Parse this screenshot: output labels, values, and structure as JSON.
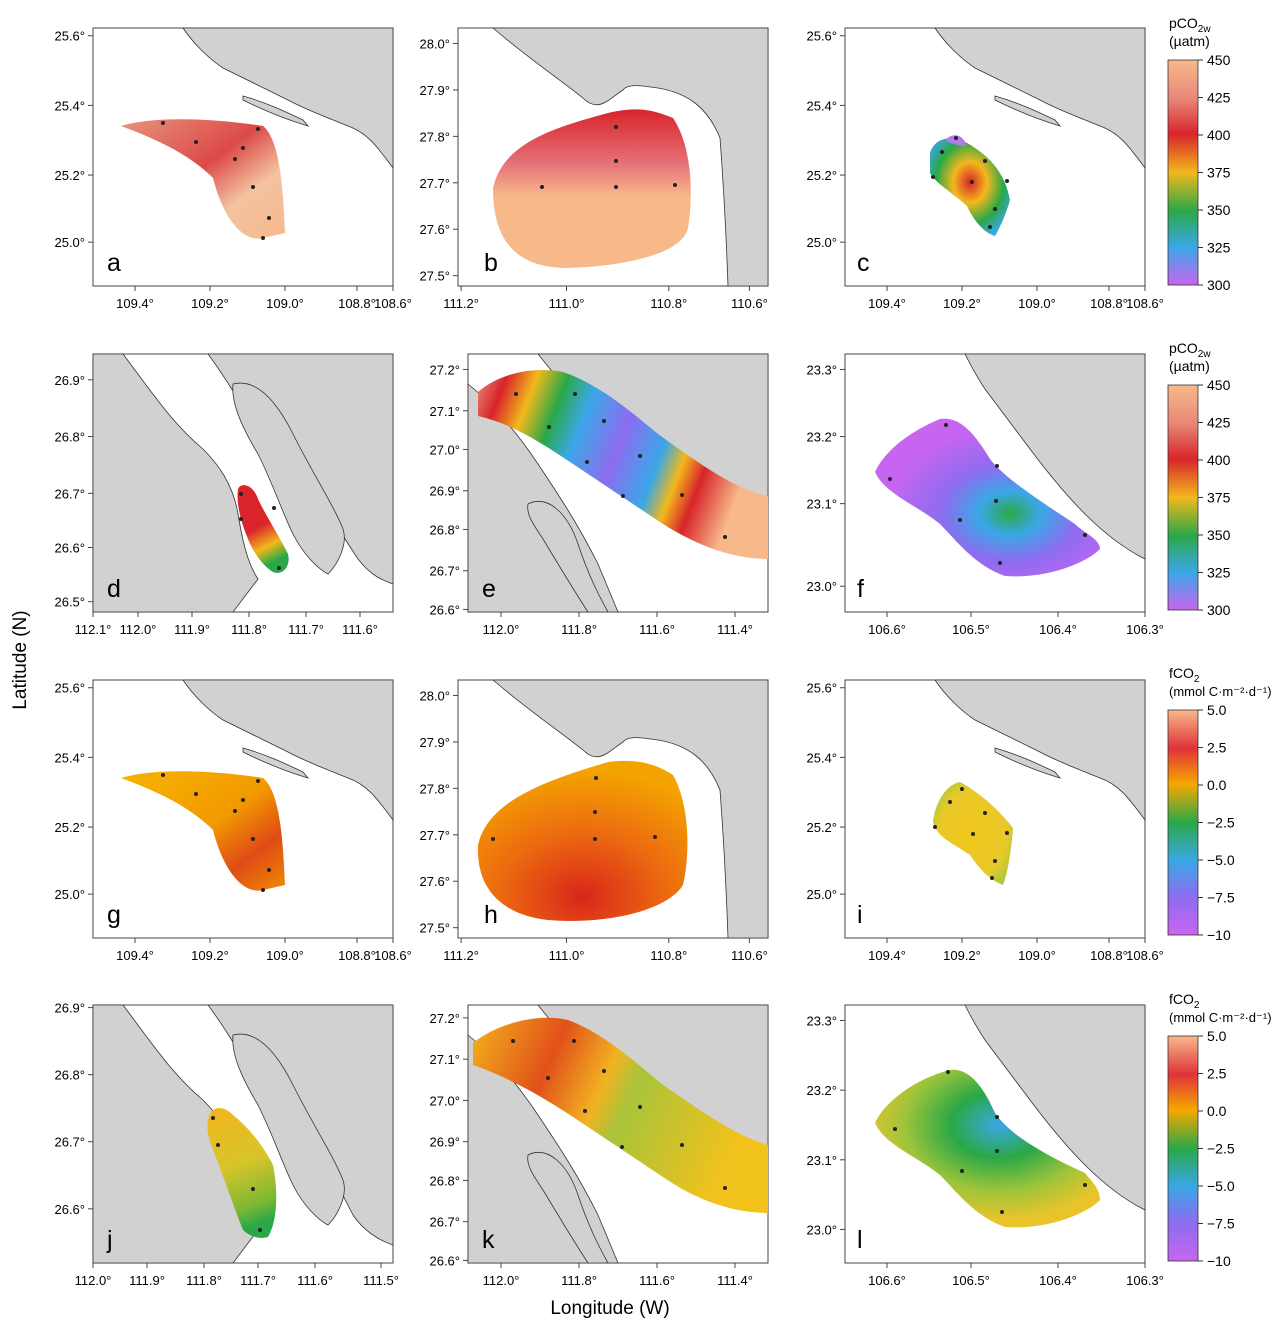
{
  "axes": {
    "xlabel": "Longitude (W)",
    "ylabel": "Latitude (N)"
  },
  "colorbars": [
    {
      "title": "pCO2w",
      "title_main": "pCO",
      "title_sub": "2w",
      "unit": "(µatm)",
      "ticks": [
        "450",
        "425",
        "400",
        "375",
        "350",
        "325",
        "300"
      ]
    },
    {
      "title": "pCO2w",
      "title_main": "pCO",
      "title_sub": "2w",
      "unit": "(µatm)",
      "ticks": [
        "450",
        "425",
        "400",
        "375",
        "350",
        "325",
        "300"
      ]
    },
    {
      "title": "fCO2",
      "title_main": "fCO",
      "title_sub": "2",
      "unit": "(mmol C·m⁻²·d⁻¹)",
      "ticks": [
        "5.0",
        "2.5",
        "0.0",
        "−2.5",
        "−5.0",
        "−7.5",
        "−10"
      ]
    },
    {
      "title": "fCO2",
      "title_main": "fCO",
      "title_sub": "2",
      "unit": "(mmol C·m⁻²·d⁻¹)",
      "ticks": [
        "5.0",
        "2.5",
        "0.0",
        "−2.5",
        "−5.0",
        "−7.5",
        "−10"
      ]
    }
  ],
  "colors": {
    "land": "#d1d1d1",
    "coast": "#333333",
    "pco2_scale": [
      "#f7b98a",
      "#e88878",
      "#d8242a",
      "#f2b81c",
      "#2aa847",
      "#3aa7e6",
      "#c865f0"
    ],
    "fco2_scale": [
      "#f7b98a",
      "#e0323a",
      "#f5a800",
      "#f0d21a",
      "#2aa847",
      "#3aa7e6",
      "#c865f0"
    ]
  },
  "panels": [
    {
      "label": "a",
      "x_ticks": [
        "109.4°",
        "109.2°",
        "109.0°",
        "108.8°",
        "108.6°"
      ],
      "y_ticks": [
        "25.6°",
        "25.4°",
        "25.2°",
        "25.0°"
      ]
    },
    {
      "label": "b",
      "x_ticks": [
        "111.2°",
        "111.0°",
        "110.8°",
        "110.6°"
      ],
      "y_ticks": [
        "28.0°",
        "27.9°",
        "27.8°",
        "27.7°",
        "27.6°",
        "27.5°"
      ]
    },
    {
      "label": "c",
      "x_ticks": [
        "109.4°",
        "109.2°",
        "109.0°",
        "108.8°",
        "108.6°"
      ],
      "y_ticks": [
        "25.6°",
        "25.4°",
        "25.2°",
        "25.0°"
      ]
    },
    {
      "label": "d",
      "x_ticks": [
        "112.1°",
        "112.0°",
        "111.9°",
        "111.8°",
        "111.7°",
        "111.6°"
      ],
      "y_ticks": [
        "26.9°",
        "26.8°",
        "26.7°",
        "26.6°",
        "26.5°"
      ]
    },
    {
      "label": "e",
      "x_ticks": [
        "112.0°",
        "111.8°",
        "111.6°",
        "111.4°"
      ],
      "y_ticks": [
        "27.2°",
        "27.1°",
        "27.0°",
        "26.9°",
        "26.8°",
        "26.7°",
        "26.6°"
      ]
    },
    {
      "label": "f",
      "x_ticks": [
        "106.6°",
        "106.5°",
        "106.4°",
        "106.3°"
      ],
      "y_ticks": [
        "23.3°",
        "23.2°",
        "23.1°",
        "23.0°"
      ]
    },
    {
      "label": "g",
      "x_ticks": [
        "109.4°",
        "109.2°",
        "109.0°",
        "108.8°",
        "108.6°"
      ],
      "y_ticks": [
        "25.6°",
        "25.4°",
        "25.2°",
        "25.0°"
      ]
    },
    {
      "label": "h",
      "x_ticks": [
        "111.2°",
        "111.0°",
        "110.8°",
        "110.6°"
      ],
      "y_ticks": [
        "28.0°",
        "27.9°",
        "27.8°",
        "27.7°",
        "27.6°",
        "27.5°"
      ]
    },
    {
      "label": "i",
      "x_ticks": [
        "109.4°",
        "109.2°",
        "109.0°",
        "108.8°",
        "108.6°"
      ],
      "y_ticks": [
        "25.6°",
        "25.4°",
        "25.2°",
        "25.0°"
      ]
    },
    {
      "label": "j",
      "x_ticks": [
        "112.0°",
        "111.9°",
        "111.8°",
        "111.7°",
        "111.6°",
        "111.5°"
      ],
      "y_ticks": [
        "26.9°",
        "26.8°",
        "26.7°",
        "26.6°"
      ]
    },
    {
      "label": "k",
      "x_ticks": [
        "112.0°",
        "111.8°",
        "111.6°",
        "111.4°"
      ],
      "y_ticks": [
        "27.2°",
        "27.1°",
        "27.0°",
        "26.9°",
        "26.8°",
        "26.7°",
        "26.6°"
      ]
    },
    {
      "label": "l",
      "x_ticks": [
        "106.6°",
        "106.5°",
        "106.4°",
        "106.3°"
      ],
      "y_ticks": [
        "23.3°",
        "23.2°",
        "23.1°",
        "23.0°"
      ]
    }
  ]
}
